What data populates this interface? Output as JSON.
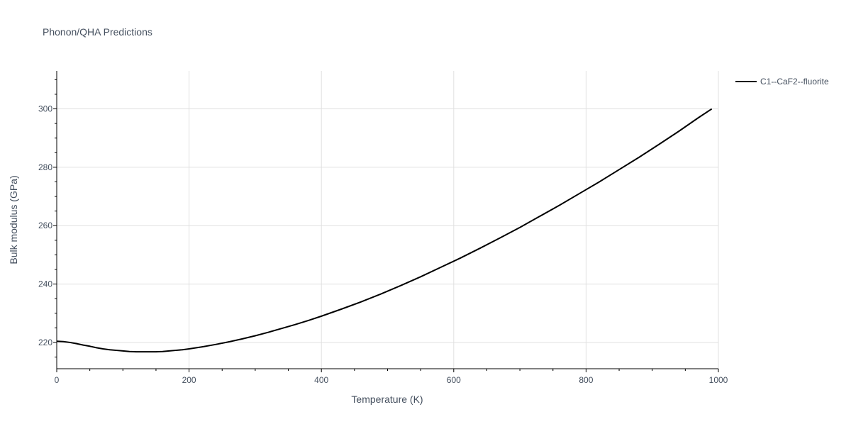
{
  "chart_data": {
    "type": "line",
    "title": "Phonon/QHA Predictions",
    "xlabel": "Temperature (K)",
    "ylabel": "Bulk modulus (GPa)",
    "xlim": [
      0,
      1000
    ],
    "ylim": [
      211,
      313
    ],
    "x_ticks": [
      0,
      200,
      400,
      600,
      800,
      1000
    ],
    "y_ticks": [
      220,
      240,
      260,
      280,
      300
    ],
    "grid": true,
    "legend_position": "top-right",
    "series": [
      {
        "name": "C1--CaF2--fluorite",
        "color": "#000000",
        "x": [
          0,
          10,
          20,
          30,
          40,
          50,
          60,
          70,
          80,
          90,
          100,
          110,
          120,
          130,
          140,
          150,
          160,
          170,
          180,
          190,
          200,
          220,
          240,
          260,
          280,
          300,
          320,
          340,
          360,
          380,
          400,
          430,
          460,
          490,
          520,
          550,
          580,
          610,
          640,
          670,
          700,
          730,
          760,
          790,
          820,
          850,
          880,
          910,
          940,
          970,
          990
        ],
        "y": [
          220.4,
          220.3,
          220.0,
          219.6,
          219.1,
          218.7,
          218.2,
          217.8,
          217.5,
          217.3,
          217.1,
          216.9,
          216.8,
          216.8,
          216.8,
          216.8,
          216.9,
          217.1,
          217.3,
          217.5,
          217.8,
          218.5,
          219.3,
          220.2,
          221.2,
          222.3,
          223.5,
          224.8,
          226.1,
          227.5,
          229.0,
          231.4,
          233.9,
          236.6,
          239.5,
          242.5,
          245.7,
          248.9,
          252.3,
          255.8,
          259.4,
          263.2,
          267.0,
          271.0,
          275.0,
          279.2,
          283.4,
          287.8,
          292.3,
          297.0,
          300.0
        ]
      }
    ]
  }
}
